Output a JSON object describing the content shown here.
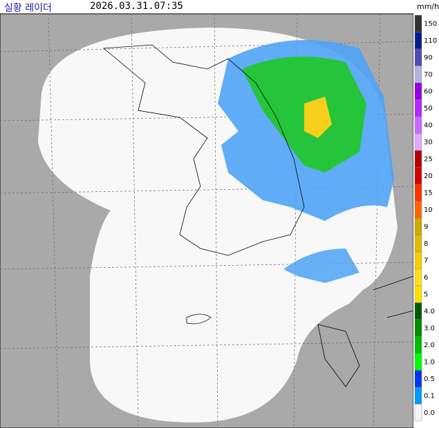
{
  "header": {
    "title": "실황 레이더",
    "timestamp": "2026.03.31.07:35"
  },
  "legend": {
    "unit": "mm/h",
    "items": [
      {
        "label": "150",
        "color": "#333333"
      },
      {
        "label": "110",
        "color": "#021c8c"
      },
      {
        "label": "90",
        "color": "#4c4eb1"
      },
      {
        "label": "70",
        "color": "#b3b4de"
      },
      {
        "label": "60",
        "color": "#9300e4"
      },
      {
        "label": "50",
        "color": "#b329ff"
      },
      {
        "label": "40",
        "color": "#c969ff"
      },
      {
        "label": "30",
        "color": "#e0a9ff"
      },
      {
        "label": "25",
        "color": "#b40000"
      },
      {
        "label": "20",
        "color": "#d20000"
      },
      {
        "label": "15",
        "color": "#ff3200"
      },
      {
        "label": "10",
        "color": "#ff6600"
      },
      {
        "label": "9",
        "color": "#ccaa00"
      },
      {
        "label": "8",
        "color": "#e0b900"
      },
      {
        "label": "7",
        "color": "#f9cd00"
      },
      {
        "label": "6",
        "color": "#ffdc1f"
      },
      {
        "label": "5",
        "color": "#ffe100"
      },
      {
        "label": "4.0",
        "color": "#005a00"
      },
      {
        "label": "3.0",
        "color": "#008c00"
      },
      {
        "label": "2.0",
        "color": "#00be00"
      },
      {
        "label": "1.0",
        "color": "#00ff00"
      },
      {
        "label": "0.5",
        "color": "#0033f5"
      },
      {
        "label": "0.1",
        "color": "#009bf5"
      },
      {
        "label": "0.0",
        "color": "#f4f4f4"
      }
    ]
  }
}
